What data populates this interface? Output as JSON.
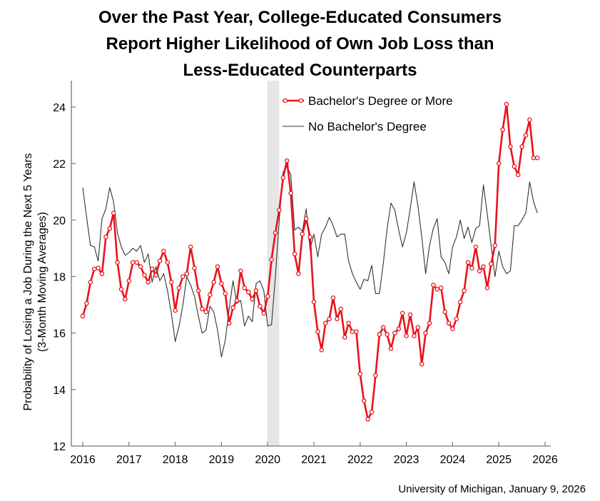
{
  "chart_data": {
    "type": "line",
    "title": [
      "Over the Past Year, College-Educated Consumers",
      "Report Higher Likelihood of Own Job Loss than",
      "Less-Educated Counterparts"
    ],
    "ylabel": [
      "Probability of Losing a Job During the Next 5 Years",
      "(3-Month Moving Averages)"
    ],
    "xlabel": "",
    "x_start": "2016-01",
    "x_frequency": "monthly",
    "x_ticks": [
      "2016",
      "2017",
      "2018",
      "2019",
      "2020",
      "2021",
      "2022",
      "2023",
      "2024",
      "2025",
      "2026"
    ],
    "y_ticks": [
      "12",
      "14",
      "16",
      "18",
      "20",
      "22",
      "24"
    ],
    "ylim": [
      12,
      25
    ],
    "grid": false,
    "legend_placement": "top-center",
    "recession_shading": [
      "2020-02",
      "2020-04"
    ],
    "series": [
      {
        "name": "Bachelor's Degree or More",
        "color": "#e8131b",
        "marker": "open-circle",
        "values": [
          16.6,
          17.05,
          17.8,
          18.27,
          18.3,
          18.1,
          19.4,
          19.7,
          20.25,
          18.5,
          17.55,
          17.2,
          17.85,
          18.5,
          18.5,
          18.35,
          18.05,
          17.8,
          18.27,
          18.05,
          18.55,
          18.9,
          18.5,
          17.8,
          16.8,
          17.6,
          18.0,
          18.1,
          19.05,
          18.3,
          17.5,
          16.85,
          16.75,
          17.35,
          17.8,
          18.35,
          17.75,
          17.4,
          16.35,
          16.9,
          17.15,
          18.2,
          17.6,
          17.45,
          17.2,
          17.5,
          16.95,
          16.7,
          17.3,
          18.6,
          19.55,
          20.35,
          21.5,
          22.1,
          20.95,
          18.8,
          18.1,
          19.5,
          20.05,
          19.4,
          17.1,
          16.05,
          15.4,
          16.35,
          16.5,
          17.25,
          16.5,
          16.85,
          15.85,
          16.35,
          16.05,
          16.05,
          14.55,
          13.6,
          12.95,
          13.2,
          14.5,
          15.95,
          16.2,
          15.95,
          15.45,
          16.0,
          16.15,
          16.7,
          15.9,
          16.65,
          15.9,
          16.2,
          14.9,
          16.0,
          16.35,
          17.7,
          17.55,
          17.6,
          16.75,
          16.35,
          16.15,
          16.5,
          17.1,
          17.5,
          18.5,
          18.3,
          19.05,
          18.2,
          18.35,
          17.6,
          18.45,
          19.1,
          22.0,
          23.2,
          24.1,
          22.6,
          21.9,
          21.6,
          22.6,
          23.0,
          23.55,
          22.2,
          22.2
        ]
      },
      {
        "name": "No Bachelor's Degree",
        "color": "#333333",
        "marker": "none",
        "values": [
          21.15,
          20.1,
          19.1,
          19.05,
          18.55,
          20.05,
          20.4,
          21.15,
          20.65,
          19.55,
          19.05,
          18.75,
          18.85,
          19.0,
          18.9,
          19.1,
          18.5,
          18.8,
          17.8,
          18.35,
          17.85,
          18.1,
          17.5,
          16.7,
          15.7,
          16.25,
          17.0,
          18.0,
          17.7,
          17.3,
          16.6,
          16.0,
          16.1,
          16.95,
          16.75,
          16.1,
          15.15,
          15.75,
          16.85,
          17.85,
          17.05,
          17.15,
          16.25,
          16.6,
          16.4,
          17.75,
          17.85,
          17.5,
          16.25,
          16.3,
          18.0,
          20.0,
          21.7,
          21.9,
          21.6,
          19.65,
          19.75,
          19.6,
          20.4,
          18.95,
          19.5,
          18.7,
          19.5,
          19.75,
          20.1,
          19.8,
          19.4,
          19.5,
          19.5,
          18.55,
          18.1,
          17.8,
          17.55,
          17.9,
          17.85,
          18.4,
          17.4,
          17.4,
          18.45,
          19.7,
          20.6,
          20.35,
          19.65,
          19.05,
          19.55,
          20.4,
          21.35,
          20.5,
          19.4,
          18.1,
          19.1,
          19.7,
          20.05,
          18.7,
          18.5,
          18.1,
          19.05,
          19.4,
          20.0,
          19.35,
          19.75,
          19.2,
          19.7,
          19.8,
          21.25,
          20.2,
          19.1,
          18.0,
          18.9,
          18.35,
          18.1,
          18.2,
          19.8,
          19.8,
          20.0,
          20.25,
          21.35,
          20.65,
          20.25
        ]
      }
    ],
    "source": "University of Michigan, January 9, 2026"
  }
}
